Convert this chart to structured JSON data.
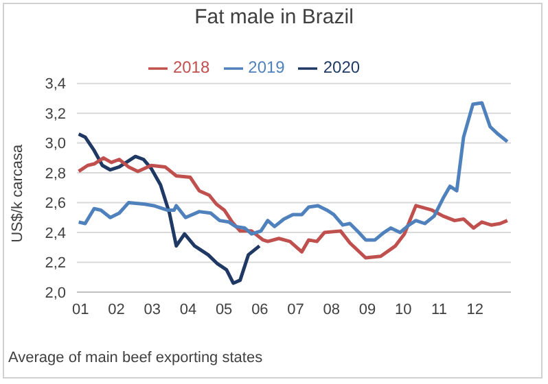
{
  "chart_data": {
    "type": "line",
    "title": "Fat male in Brazil",
    "ylabel": "US$/k carcasa",
    "annotations": [
      "Average of main beef exporting states"
    ],
    "xlim": [
      0.9,
      13.0
    ],
    "xticks": [
      {
        "value": 1,
        "label": "01"
      },
      {
        "value": 2,
        "label": "02"
      },
      {
        "value": 3,
        "label": "03"
      },
      {
        "value": 4,
        "label": "04"
      },
      {
        "value": 5,
        "label": "05"
      },
      {
        "value": 6,
        "label": "06"
      },
      {
        "value": 7,
        "label": "07"
      },
      {
        "value": 8,
        "label": "08"
      },
      {
        "value": 9,
        "label": "09"
      },
      {
        "value": 10,
        "label": "10"
      },
      {
        "value": 11,
        "label": "11"
      },
      {
        "value": 12,
        "label": "12"
      }
    ],
    "ylim": [
      2.0,
      3.4
    ],
    "yticks": [
      {
        "value": 2.0,
        "label": "2,0"
      },
      {
        "value": 2.2,
        "label": "2,2"
      },
      {
        "value": 2.4,
        "label": "2,4"
      },
      {
        "value": 2.6,
        "label": "2,6"
      },
      {
        "value": 2.8,
        "label": "2,8"
      },
      {
        "value": 3.0,
        "label": "3,0"
      },
      {
        "value": 3.2,
        "label": "3,2"
      },
      {
        "value": 3.4,
        "label": "3,4"
      }
    ],
    "grid": "y",
    "legend": "top",
    "marker": "none",
    "line_style": "solid",
    "series": [
      {
        "name": "2020",
        "color": "#1f3864",
        "x": [
          0.95,
          1.13,
          1.38,
          1.61,
          1.83,
          2.08,
          2.34,
          2.53,
          2.76,
          2.97,
          3.23,
          3.48,
          3.67,
          3.9,
          4.18,
          4.56,
          4.82,
          5.07,
          5.26,
          5.45,
          5.68,
          5.99
        ],
        "values": [
          3.06,
          3.04,
          2.95,
          2.85,
          2.82,
          2.84,
          2.88,
          2.91,
          2.89,
          2.83,
          2.72,
          2.53,
          2.31,
          2.39,
          2.31,
          2.25,
          2.19,
          2.15,
          2.06,
          2.08,
          2.25,
          2.31
        ]
      },
      {
        "name": "2018",
        "color": "#c0504d",
        "x": [
          0.95,
          1.2,
          1.38,
          1.64,
          1.86,
          2.08,
          2.34,
          2.6,
          2.97,
          3.36,
          3.67,
          4.06,
          4.31,
          4.59,
          4.79,
          5.01,
          5.23,
          5.45,
          5.77,
          6.09,
          6.22,
          6.53,
          6.84,
          7.17,
          7.36,
          7.59,
          7.8,
          8.25,
          8.51,
          8.95,
          9.37,
          9.78,
          10.03,
          10.35,
          10.8,
          11.11,
          11.43,
          11.68,
          11.96,
          12.19,
          12.45,
          12.7,
          12.9
        ],
        "values": [
          2.81,
          2.85,
          2.86,
          2.9,
          2.87,
          2.89,
          2.84,
          2.81,
          2.85,
          2.84,
          2.78,
          2.77,
          2.68,
          2.65,
          2.59,
          2.55,
          2.47,
          2.41,
          2.41,
          2.35,
          2.34,
          2.36,
          2.34,
          2.27,
          2.35,
          2.34,
          2.4,
          2.41,
          2.33,
          2.23,
          2.24,
          2.31,
          2.39,
          2.58,
          2.55,
          2.51,
          2.48,
          2.49,
          2.43,
          2.47,
          2.45,
          2.46,
          2.48
        ]
      },
      {
        "name": "2019",
        "color": "#4f81bd",
        "x": [
          0.95,
          1.13,
          1.38,
          1.57,
          1.83,
          2.08,
          2.34,
          2.79,
          3.04,
          3.42,
          3.61,
          3.67,
          3.93,
          4.31,
          4.63,
          4.88,
          5.14,
          5.33,
          5.58,
          5.77,
          6.03,
          6.22,
          6.41,
          6.67,
          6.92,
          7.17,
          7.36,
          7.62,
          7.87,
          8.06,
          8.31,
          8.51,
          8.76,
          8.95,
          9.21,
          9.46,
          9.65,
          9.91,
          10.16,
          10.35,
          10.6,
          10.86,
          11.11,
          11.3,
          11.49,
          11.68,
          11.94,
          12.19,
          12.42,
          12.64,
          12.9
        ],
        "values": [
          2.47,
          2.46,
          2.56,
          2.55,
          2.5,
          2.53,
          2.6,
          2.59,
          2.58,
          2.55,
          2.55,
          2.58,
          2.5,
          2.54,
          2.53,
          2.48,
          2.47,
          2.44,
          2.43,
          2.39,
          2.41,
          2.48,
          2.44,
          2.49,
          2.52,
          2.52,
          2.57,
          2.58,
          2.55,
          2.52,
          2.45,
          2.46,
          2.4,
          2.35,
          2.35,
          2.4,
          2.43,
          2.4,
          2.45,
          2.48,
          2.46,
          2.51,
          2.63,
          2.71,
          2.68,
          3.04,
          3.26,
          3.27,
          3.11,
          3.06,
          3.01
        ]
      }
    ]
  }
}
